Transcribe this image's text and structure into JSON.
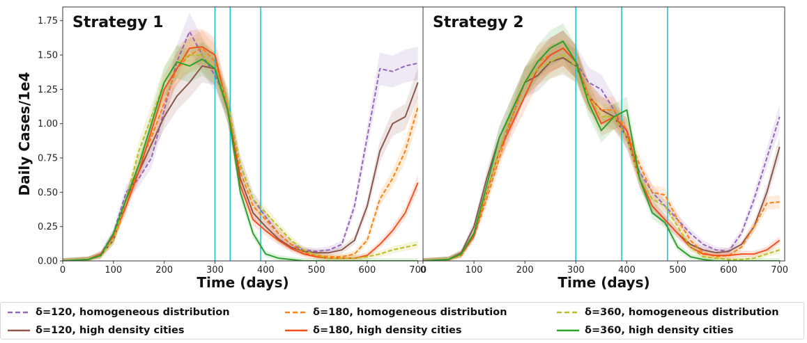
{
  "chart_data": [
    {
      "type": "line",
      "title": "Strategy 1",
      "xlabel": "Time (days)",
      "ylabel": "Daily Cases/1e4",
      "xlim": [
        0,
        710
      ],
      "ylim": [
        0,
        1.85
      ],
      "xticks": [
        "0",
        "100",
        "200",
        "300",
        "400",
        "500",
        "600",
        "700"
      ],
      "yticks": [
        "0.00",
        "0.25",
        "0.50",
        "0.75",
        "1.00",
        "1.25",
        "1.50",
        "1.75"
      ],
      "vlines": [
        300,
        330,
        390
      ],
      "x": [
        0,
        50,
        75,
        100,
        125,
        150,
        175,
        200,
        225,
        250,
        275,
        300,
        325,
        350,
        375,
        400,
        425,
        450,
        475,
        500,
        525,
        550,
        575,
        600,
        625,
        650,
        675,
        700
      ],
      "series": [
        {
          "name": "δ=120, homogeneous distribution",
          "color": "#9467bd",
          "dash": "dashed",
          "values": [
            0,
            0.01,
            0.05,
            0.2,
            0.5,
            0.6,
            0.75,
            1.1,
            1.45,
            1.67,
            1.5,
            1.35,
            1.15,
            0.7,
            0.45,
            0.32,
            0.2,
            0.12,
            0.08,
            0.07,
            0.08,
            0.12,
            0.4,
            0.9,
            1.4,
            1.38,
            1.42,
            1.44
          ]
        },
        {
          "name": "δ=120, high density cities",
          "color": "#8c564b",
          "dash": "solid",
          "values": [
            0,
            0.01,
            0.04,
            0.15,
            0.45,
            0.65,
            0.85,
            1.05,
            1.2,
            1.3,
            1.42,
            1.4,
            1.1,
            0.6,
            0.35,
            0.25,
            0.16,
            0.1,
            0.07,
            0.06,
            0.06,
            0.08,
            0.15,
            0.4,
            0.8,
            1.0,
            1.05,
            1.3
          ]
        },
        {
          "name": "δ=180, homogeneous distribution",
          "color": "#ff7f0e",
          "dash": "dashed",
          "values": [
            0,
            0.01,
            0.04,
            0.15,
            0.4,
            0.7,
            0.9,
            1.15,
            1.4,
            1.5,
            1.55,
            1.45,
            1.15,
            0.65,
            0.4,
            0.3,
            0.2,
            0.12,
            0.06,
            0.04,
            0.03,
            0.03,
            0.05,
            0.15,
            0.45,
            0.6,
            0.8,
            1.12
          ]
        },
        {
          "name": "δ=180, high density cities",
          "color": "#f4511e",
          "dash": "solid",
          "values": [
            0,
            0.01,
            0.05,
            0.18,
            0.4,
            0.65,
            0.95,
            1.25,
            1.4,
            1.55,
            1.56,
            1.5,
            1.1,
            0.55,
            0.3,
            0.22,
            0.15,
            0.09,
            0.05,
            0.03,
            0.02,
            0.02,
            0.02,
            0.04,
            0.12,
            0.22,
            0.35,
            0.57
          ]
        },
        {
          "name": "δ=360, homogeneous distribution",
          "color": "#bcbd22",
          "dash": "dashed",
          "values": [
            0,
            0.01,
            0.04,
            0.15,
            0.45,
            0.8,
            1.05,
            1.3,
            1.45,
            1.5,
            1.5,
            1.4,
            1.15,
            0.7,
            0.45,
            0.35,
            0.25,
            0.15,
            0.08,
            0.04,
            0.02,
            0.02,
            0.02,
            0.03,
            0.05,
            0.08,
            0.1,
            0.12
          ]
        },
        {
          "name": "δ=360, high density cities",
          "color": "#2ca02c",
          "dash": "solid",
          "values": [
            0,
            0.01,
            0.04,
            0.2,
            0.45,
            0.7,
            1.0,
            1.3,
            1.45,
            1.42,
            1.47,
            1.4,
            1.1,
            0.5,
            0.2,
            0.05,
            0.02,
            0.01,
            0,
            0,
            0,
            0,
            0,
            0,
            0,
            0,
            0,
            0
          ]
        }
      ]
    },
    {
      "type": "line",
      "title": "Strategy 2",
      "xlabel": "Time (days)",
      "ylabel": "",
      "xlim": [
        0,
        710
      ],
      "ylim": [
        0,
        1.85
      ],
      "xticks": [
        "0",
        "100",
        "200",
        "300",
        "400",
        "500",
        "600",
        "700"
      ],
      "yticks": [],
      "vlines": [
        300,
        390,
        480
      ],
      "x": [
        0,
        50,
        75,
        100,
        125,
        150,
        175,
        200,
        225,
        250,
        275,
        300,
        325,
        350,
        375,
        400,
        425,
        450,
        475,
        500,
        525,
        550,
        575,
        600,
        625,
        650,
        675,
        700
      ],
      "series": [
        {
          "name": "δ=120, homogeneous distribution",
          "color": "#9467bd",
          "dash": "dashed",
          "values": [
            0,
            0.01,
            0.05,
            0.2,
            0.5,
            0.8,
            1.05,
            1.3,
            1.4,
            1.5,
            1.55,
            1.45,
            1.3,
            1.25,
            1.1,
            0.9,
            0.65,
            0.5,
            0.4,
            0.3,
            0.2,
            0.12,
            0.08,
            0.07,
            0.2,
            0.45,
            0.75,
            1.05
          ]
        },
        {
          "name": "δ=120, high density cities",
          "color": "#8c564b",
          "dash": "solid",
          "values": [
            0,
            0.01,
            0.06,
            0.25,
            0.6,
            0.9,
            1.1,
            1.3,
            1.35,
            1.45,
            1.48,
            1.42,
            1.2,
            1.1,
            1.05,
            0.9,
            0.6,
            0.4,
            0.3,
            0.2,
            0.12,
            0.08,
            0.06,
            0.07,
            0.12,
            0.25,
            0.5,
            0.83
          ]
        },
        {
          "name": "δ=180, homogeneous distribution",
          "color": "#ff7f0e",
          "dash": "dashed",
          "values": [
            0,
            0.01,
            0.04,
            0.18,
            0.45,
            0.75,
            1.05,
            1.3,
            1.45,
            1.5,
            1.55,
            1.45,
            1.2,
            1.1,
            1.1,
            0.95,
            0.7,
            0.5,
            0.48,
            0.3,
            0.15,
            0.06,
            0.03,
            0.04,
            0.1,
            0.25,
            0.42,
            0.43
          ]
        },
        {
          "name": "δ=180, high density cities",
          "color": "#f4511e",
          "dash": "solid",
          "values": [
            0,
            0.01,
            0.05,
            0.18,
            0.5,
            0.8,
            1.0,
            1.2,
            1.4,
            1.5,
            1.55,
            1.45,
            1.2,
            1.0,
            1.05,
            0.95,
            0.6,
            0.4,
            0.3,
            0.2,
            0.1,
            0.05,
            0.04,
            0.04,
            0.05,
            0.05,
            0.08,
            0.15
          ]
        },
        {
          "name": "δ=360, homogeneous distribution",
          "color": "#bcbd22",
          "dash": "dashed",
          "values": [
            0,
            0.01,
            0.05,
            0.2,
            0.5,
            0.8,
            1.1,
            1.3,
            1.4,
            1.45,
            1.5,
            1.42,
            1.2,
            1.05,
            1.05,
            0.9,
            0.6,
            0.45,
            0.4,
            0.25,
            0.1,
            0.03,
            0.02,
            0.01,
            0.01,
            0.02,
            0.05,
            0.08
          ]
        },
        {
          "name": "δ=360, high density cities",
          "color": "#2ca02c",
          "dash": "solid",
          "values": [
            0,
            0.01,
            0.05,
            0.2,
            0.55,
            0.9,
            1.1,
            1.3,
            1.45,
            1.55,
            1.6,
            1.45,
            1.15,
            0.95,
            1.05,
            1.1,
            0.6,
            0.35,
            0.28,
            0.1,
            0.03,
            0.01,
            0,
            0,
            0,
            0,
            0,
            0
          ]
        }
      ]
    }
  ],
  "legend": [
    {
      "label": "δ=120, homogeneous distribution",
      "color": "#9467bd",
      "dash": "dashed"
    },
    {
      "label": "δ=180, homogeneous distribution",
      "color": "#ff7f0e",
      "dash": "dashed"
    },
    {
      "label": "δ=360, homogeneous distribution",
      "color": "#bcbd22",
      "dash": "dashed"
    },
    {
      "label": "δ=120, high density cities",
      "color": "#8c564b",
      "dash": "solid"
    },
    {
      "label": "δ=180, high density cities",
      "color": "#f4511e",
      "dash": "solid"
    },
    {
      "label": "δ=360, high density cities",
      "color": "#2ca02c",
      "dash": "solid"
    }
  ],
  "vline_color": "#17becf"
}
